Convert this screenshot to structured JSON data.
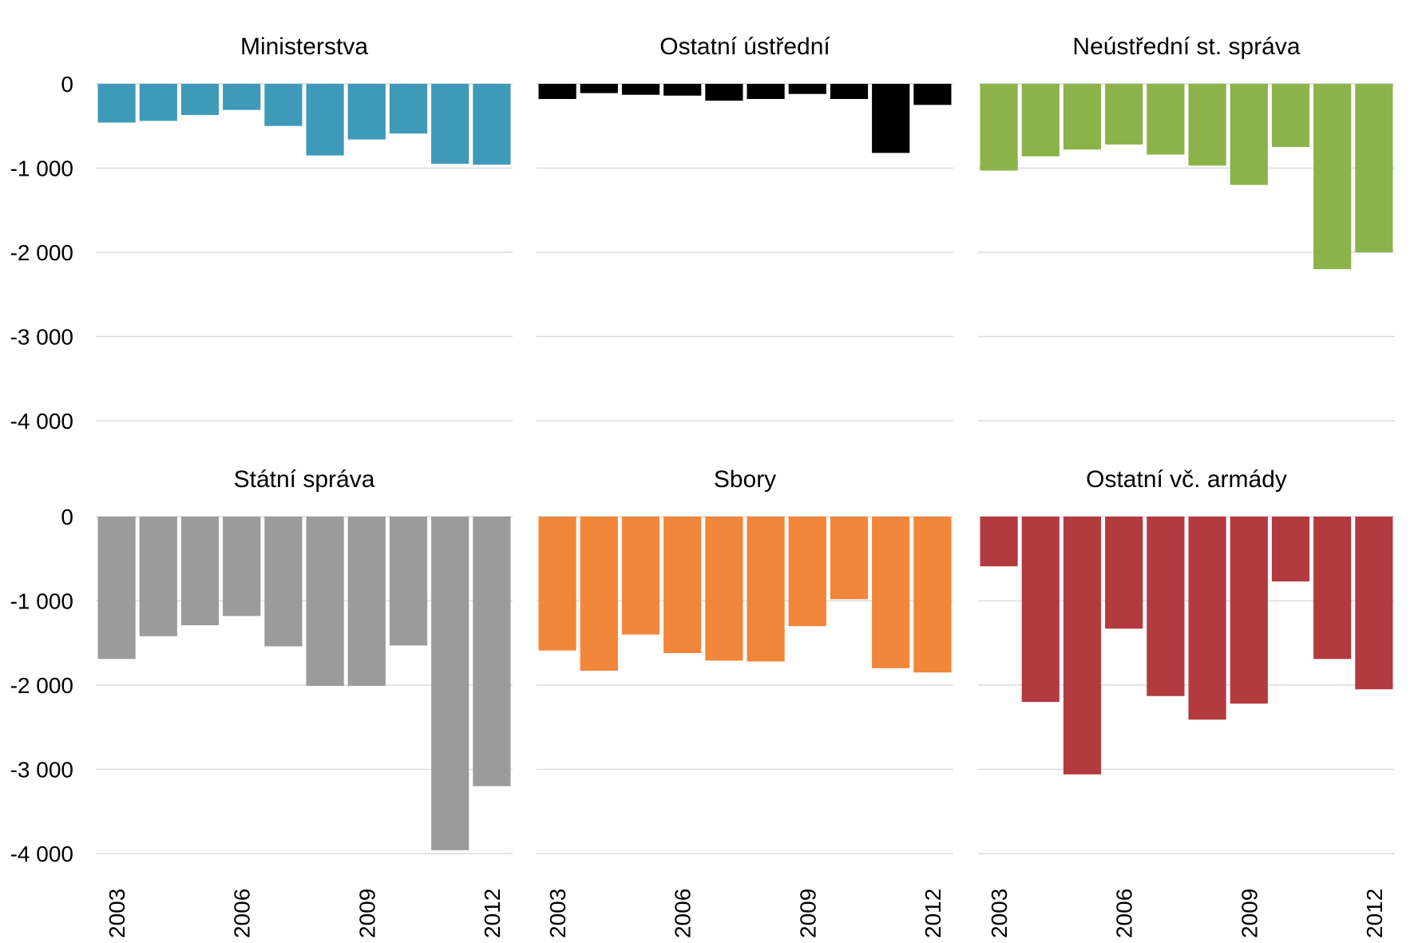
{
  "chart_data": {
    "type": "bar",
    "layout": "small-multiples",
    "x": [
      2003,
      2004,
      2005,
      2006,
      2007,
      2008,
      2009,
      2010,
      2011,
      2012
    ],
    "x_tick_labels": [
      "2003",
      "2006",
      "2009",
      "2012"
    ],
    "y_ticks": [
      0,
      -1000,
      -2000,
      -3000,
      -4000
    ],
    "y_tick_labels": [
      "0",
      "-1 000",
      "-2 000",
      "-3 000",
      "-4 000"
    ],
    "ylim": [
      -4000,
      0
    ],
    "grid": true,
    "panels": [
      {
        "name": "Ministerstva",
        "color": "#3f9ab9",
        "values": [
          -460,
          -440,
          -370,
          -310,
          -500,
          -850,
          -660,
          -590,
          -950,
          -960
        ]
      },
      {
        "name": "Ostatní ústřední",
        "color": "#000000",
        "values": [
          -180,
          -110,
          -130,
          -140,
          -200,
          -180,
          -120,
          -180,
          -820,
          -250
        ]
      },
      {
        "name": "Neústřední st. správa",
        "color": "#8bb34a",
        "values": [
          -1030,
          -860,
          -780,
          -720,
          -840,
          -970,
          -1200,
          -750,
          -2200,
          -2000
        ]
      },
      {
        "name": "Státní správa",
        "color": "#9b9b9b",
        "values": [
          -1690,
          -1420,
          -1290,
          -1180,
          -1540,
          -2010,
          -2010,
          -1530,
          -3960,
          -3200
        ]
      },
      {
        "name": "Sbory",
        "color": "#f2863a",
        "values": [
          -1590,
          -1830,
          -1400,
          -1620,
          -1710,
          -1720,
          -1300,
          -980,
          -1800,
          -1850
        ]
      },
      {
        "name": "Ostatní vč. armády",
        "color": "#b33a3e",
        "values": [
          -590,
          -2200,
          -3060,
          -1330,
          -2130,
          -2410,
          -2220,
          -770,
          -1690,
          -2050
        ]
      }
    ]
  }
}
